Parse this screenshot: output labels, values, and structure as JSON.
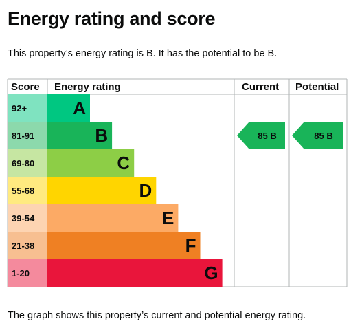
{
  "title": "Energy rating and score",
  "summary": "This property’s energy rating is B. It has the potential to be B.",
  "caption": "The graph shows this property’s current and potential energy rating.",
  "table": {
    "headers": {
      "score": "Score",
      "rating": "Energy rating",
      "current": "Current",
      "potential": "Potential"
    },
    "bands": [
      {
        "score": "92+",
        "letter": "A",
        "color": "#00c781",
        "score_bg": "#7fe3c0"
      },
      {
        "score": "81-91",
        "letter": "B",
        "color": "#19b459",
        "score_bg": "#8cd9ac"
      },
      {
        "score": "69-80",
        "letter": "C",
        "color": "#8dce46",
        "score_bg": "#c6e6a2"
      },
      {
        "score": "55-68",
        "letter": "D",
        "color": "#ffd500",
        "score_bg": "#ffea80"
      },
      {
        "score": "39-54",
        "letter": "E",
        "color": "#fcaa65",
        "score_bg": "#fdd4b2"
      },
      {
        "score": "21-38",
        "letter": "F",
        "color": "#ef8023",
        "score_bg": "#f7bf91"
      },
      {
        "score": "1-20",
        "letter": "G",
        "color": "#e9153b",
        "score_bg": "#f48a9d"
      }
    ],
    "current": {
      "score": 85,
      "band": "B",
      "label": "85 B",
      "color": "#19b459"
    },
    "potential": {
      "score": 85,
      "band": "B",
      "label": "85 B",
      "color": "#19b459"
    }
  },
  "colors": {
    "grid": "#b1b4b6",
    "text": "#0b0c0c"
  }
}
